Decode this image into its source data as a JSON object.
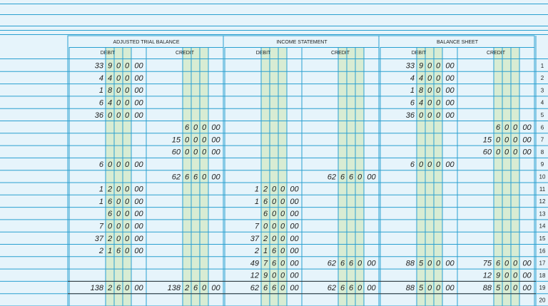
{
  "sections": [
    {
      "title": "ADJUSTED TRIAL BALANCE",
      "columns": [
        "DEBIT",
        "CREDIT"
      ]
    },
    {
      "title": "INCOME STATEMENT",
      "columns": [
        "DEBIT",
        "CREDIT"
      ]
    },
    {
      "title": "BALANCE SHEET",
      "columns": [
        "DEBIT",
        "CREDIT"
      ]
    }
  ],
  "rows": [
    {
      "number": "1",
      "cells": [
        {
          "thousands": "33",
          "digits": [
            "9",
            "0",
            "0"
          ],
          "cents": "00"
        },
        null,
        null,
        null,
        {
          "thousands": "33",
          "digits": [
            "9",
            "0",
            "0"
          ],
          "cents": "00"
        },
        null
      ]
    },
    {
      "number": "2",
      "cells": [
        {
          "thousands": "4",
          "digits": [
            "4",
            "0",
            "0"
          ],
          "cents": "00"
        },
        null,
        null,
        null,
        {
          "thousands": "4",
          "digits": [
            "4",
            "0",
            "0"
          ],
          "cents": "00"
        },
        null
      ]
    },
    {
      "number": "3",
      "cells": [
        {
          "thousands": "1",
          "digits": [
            "8",
            "0",
            "0"
          ],
          "cents": "00"
        },
        null,
        null,
        null,
        {
          "thousands": "1",
          "digits": [
            "8",
            "0",
            "0"
          ],
          "cents": "00"
        },
        null
      ]
    },
    {
      "number": "4",
      "cells": [
        {
          "thousands": "6",
          "digits": [
            "4",
            "0",
            "0"
          ],
          "cents": "00"
        },
        null,
        null,
        null,
        {
          "thousands": "6",
          "digits": [
            "4",
            "0",
            "0"
          ],
          "cents": "00"
        },
        null
      ]
    },
    {
      "number": "5",
      "cells": [
        {
          "thousands": "36",
          "digits": [
            "0",
            "0",
            "0"
          ],
          "cents": "00"
        },
        null,
        null,
        null,
        {
          "thousands": "36",
          "digits": [
            "0",
            "0",
            "0"
          ],
          "cents": "00"
        },
        null
      ]
    },
    {
      "number": "6",
      "cells": [
        null,
        {
          "digits": [
            "6",
            "0",
            "0"
          ],
          "cents": "00"
        },
        null,
        null,
        null,
        {
          "digits": [
            "6",
            "0",
            "0"
          ],
          "cents": "00"
        }
      ]
    },
    {
      "number": "7",
      "cells": [
        null,
        {
          "thousands": "15",
          "digits": [
            "0",
            "0",
            "0"
          ],
          "cents": "00"
        },
        null,
        null,
        null,
        {
          "thousands": "15",
          "digits": [
            "0",
            "0",
            "0"
          ],
          "cents": "00"
        }
      ]
    },
    {
      "number": "8",
      "cells": [
        null,
        {
          "thousands": "60",
          "digits": [
            "0",
            "0",
            "0"
          ],
          "cents": "00"
        },
        null,
        null,
        null,
        {
          "thousands": "60",
          "digits": [
            "0",
            "0",
            "0"
          ],
          "cents": "00"
        }
      ]
    },
    {
      "number": "9",
      "cells": [
        {
          "thousands": "6",
          "digits": [
            "0",
            "0",
            "0"
          ],
          "cents": "00"
        },
        null,
        null,
        null,
        {
          "thousands": "6",
          "digits": [
            "0",
            "0",
            "0"
          ],
          "cents": "00"
        },
        null
      ]
    },
    {
      "number": "10",
      "cells": [
        null,
        {
          "thousands": "62",
          "digits": [
            "6",
            "6",
            "0"
          ],
          "cents": "00"
        },
        null,
        {
          "thousands": "62",
          "digits": [
            "6",
            "6",
            "0"
          ],
          "cents": "00"
        },
        null,
        null
      ]
    },
    {
      "number": "11",
      "cells": [
        {
          "thousands": "1",
          "digits": [
            "2",
            "0",
            "0"
          ],
          "cents": "00"
        },
        null,
        {
          "thousands": "1",
          "digits": [
            "2",
            "0",
            "0"
          ],
          "cents": "00"
        },
        null,
        null,
        null
      ]
    },
    {
      "number": "12",
      "cells": [
        {
          "thousands": "1",
          "digits": [
            "6",
            "0",
            "0"
          ],
          "cents": "00"
        },
        null,
        {
          "thousands": "1",
          "digits": [
            "6",
            "0",
            "0"
          ],
          "cents": "00"
        },
        null,
        null,
        null
      ]
    },
    {
      "number": "13",
      "cells": [
        {
          "digits": [
            "6",
            "0",
            "0"
          ],
          "cents": "00"
        },
        null,
        {
          "digits": [
            "6",
            "0",
            "0"
          ],
          "cents": "00"
        },
        null,
        null,
        null
      ]
    },
    {
      "number": "14",
      "cells": [
        {
          "thousands": "7",
          "digits": [
            "0",
            "0",
            "0"
          ],
          "cents": "00"
        },
        null,
        {
          "thousands": "7",
          "digits": [
            "0",
            "0",
            "0"
          ],
          "cents": "00"
        },
        null,
        null,
        null
      ]
    },
    {
      "number": "15",
      "cells": [
        {
          "thousands": "37",
          "digits": [
            "2",
            "0",
            "0"
          ],
          "cents": "00"
        },
        null,
        {
          "thousands": "37",
          "digits": [
            "2",
            "0",
            "0"
          ],
          "cents": "00"
        },
        null,
        null,
        null
      ]
    },
    {
      "number": "16",
      "cells": [
        {
          "thousands": "2",
          "digits": [
            "1",
            "6",
            "0"
          ],
          "cents": "00"
        },
        null,
        {
          "thousands": "2",
          "digits": [
            "1",
            "6",
            "0"
          ],
          "cents": "00"
        },
        null,
        null,
        null
      ]
    },
    {
      "number": "17",
      "cells": [
        null,
        null,
        {
          "thousands": "49",
          "digits": [
            "7",
            "6",
            "0"
          ],
          "cents": "00"
        },
        {
          "thousands": "62",
          "digits": [
            "6",
            "6",
            "0"
          ],
          "cents": "00"
        },
        {
          "thousands": "88",
          "digits": [
            "5",
            "0",
            "0"
          ],
          "cents": "00"
        },
        {
          "thousands": "75",
          "digits": [
            "6",
            "0",
            "0"
          ],
          "cents": "00"
        }
      ]
    },
    {
      "number": "18",
      "cells": [
        null,
        null,
        {
          "thousands": "12",
          "digits": [
            "9",
            "0",
            "0"
          ],
          "cents": "00"
        },
        null,
        null,
        {
          "thousands": "12",
          "digits": [
            "9",
            "0",
            "0"
          ],
          "cents": "00"
        }
      ]
    },
    {
      "number": "19",
      "cells": [
        {
          "thousands": "138",
          "digits": [
            "2",
            "6",
            "0"
          ],
          "cents": "00"
        },
        {
          "thousands": "138",
          "digits": [
            "2",
            "6",
            "0"
          ],
          "cents": "00"
        },
        {
          "thousands": "62",
          "digits": [
            "6",
            "6",
            "0"
          ],
          "cents": "00"
        },
        {
          "thousands": "62",
          "digits": [
            "6",
            "6",
            "0"
          ],
          "cents": "00"
        },
        {
          "thousands": "88",
          "digits": [
            "5",
            "0",
            "0"
          ],
          "cents": "00"
        },
        {
          "thousands": "88",
          "digits": [
            "5",
            "0",
            "0"
          ],
          "cents": "00"
        }
      ]
    },
    {
      "number": "20",
      "cells": [
        null,
        null,
        null,
        null,
        null,
        null
      ]
    }
  ]
}
